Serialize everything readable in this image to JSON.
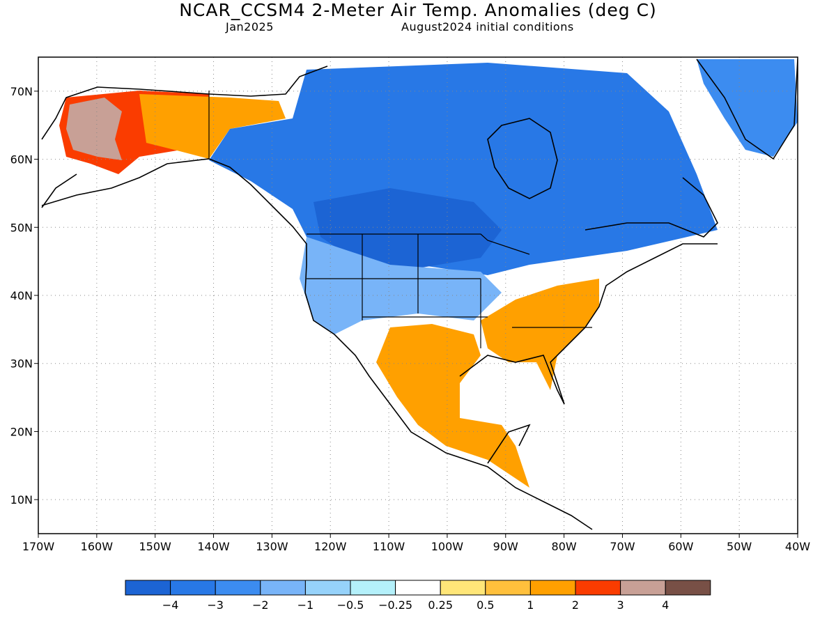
{
  "title": "NCAR_CCSM4 2-Meter Air Temp. Anomalies (deg C)",
  "subtitle_left": "Jan2025",
  "subtitle_right": "August2024 initial conditions",
  "map": {
    "lon_range": [
      -170,
      -40
    ],
    "lat_range": [
      5,
      75
    ],
    "lon_ticks": [
      "170W",
      "160W",
      "150W",
      "140W",
      "130W",
      "120W",
      "110W",
      "100W",
      "90W",
      "80W",
      "70W",
      "60W",
      "50W",
      "40W"
    ],
    "lat_ticks": [
      "10N",
      "20N",
      "30N",
      "40N",
      "50N",
      "60N",
      "70N"
    ],
    "lat_values": [
      10,
      20,
      30,
      40,
      50,
      60,
      70
    ],
    "gridlines": "dotted"
  },
  "legend": {
    "labels": [
      "-4",
      "-3",
      "-2",
      "-1",
      "-0.5",
      "-0.25",
      "0.25",
      "0.5",
      "1",
      "2",
      "3",
      "4"
    ],
    "colors": [
      "#1c64d4",
      "#2878e6",
      "#3c8cf0",
      "#78b4f8",
      "#96d2fa",
      "#b4f0fa",
      "#ffffff",
      "#ffe678",
      "#ffc03c",
      "#ffa000",
      "#fa3c00",
      "#c8a096",
      "#785046"
    ]
  },
  "regions": [
    {
      "name": "alaska-warm",
      "color": "#fa3c00"
    },
    {
      "name": "alaska-max",
      "color": "#c8a096"
    },
    {
      "name": "yukon-warm",
      "color": "#ffa000"
    },
    {
      "name": "canada-cold",
      "color": "#2878e6"
    },
    {
      "name": "northern-plains-cold",
      "color": "#1c64d4"
    },
    {
      "name": "western-us-cool",
      "color": "#78b4f8"
    },
    {
      "name": "southeast-us-warm",
      "color": "#ffa000"
    },
    {
      "name": "mexico-warm",
      "color": "#ffa000"
    },
    {
      "name": "greenland-cold",
      "color": "#3c8cf0"
    }
  ]
}
